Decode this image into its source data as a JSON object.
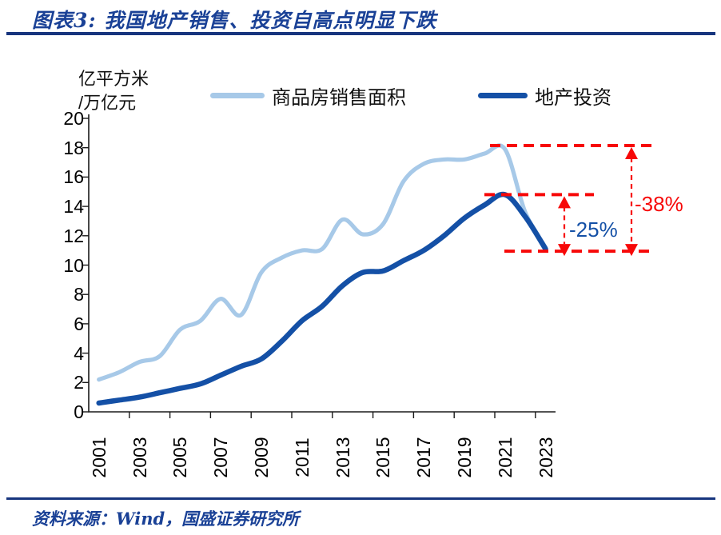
{
  "header": {
    "title": "图表3: 我国地产销售、投资自高点明显下跌"
  },
  "footer": {
    "source": "资料来源：Wind，国盛证券研究所"
  },
  "colors": {
    "rule_navy": "#17357e",
    "title_blue": "#1a4196",
    "axis": "#1a1a1a",
    "annotation_red": "#f70808",
    "sales_blue": "#a7c9e8",
    "invest_blue": "#1450a6"
  },
  "chart_data": {
    "type": "line",
    "title": "我国地产销售、投资自高点明显下跌",
    "unit_label_line1": "亿平方米",
    "unit_label_line2": "/万亿元",
    "grid": false,
    "legend_position": "top",
    "ylim": [
      0,
      20
    ],
    "yticks": [
      0,
      2,
      4,
      6,
      8,
      10,
      12,
      14,
      16,
      18,
      20
    ],
    "xticks": [
      "2001",
      "2003",
      "2005",
      "2007",
      "2009",
      "2011",
      "2013",
      "2015",
      "2017",
      "2019",
      "2021",
      "2023"
    ],
    "x": [
      2001,
      2002,
      2003,
      2004,
      2005,
      2006,
      2007,
      2008,
      2009,
      2010,
      2011,
      2012,
      2013,
      2014,
      2015,
      2016,
      2017,
      2018,
      2019,
      2020,
      2021,
      2022,
      2023
    ],
    "series": [
      {
        "id": "sales-line",
        "name": "商品房销售面积",
        "color": "#a7c9e8",
        "width": 5.2,
        "values": [
          2.2,
          2.7,
          3.4,
          3.8,
          5.6,
          6.2,
          7.7,
          6.6,
          9.5,
          10.5,
          11.0,
          11.1,
          13.1,
          12.1,
          12.8,
          15.7,
          16.9,
          17.2,
          17.2,
          17.6,
          17.9,
          13.6,
          11.2
        ]
      },
      {
        "id": "invest-line",
        "name": "地产投资",
        "color": "#1450a6",
        "width": 6.5,
        "values": [
          0.6,
          0.8,
          1.0,
          1.3,
          1.6,
          1.9,
          2.5,
          3.1,
          3.6,
          4.8,
          6.2,
          7.2,
          8.6,
          9.5,
          9.6,
          10.3,
          11.0,
          12.0,
          13.2,
          14.1,
          14.8,
          13.3,
          11.1
        ]
      }
    ],
    "annotations": {
      "color": "#f70808",
      "dashed_lines": [
        {
          "name": "sales-peak-level",
          "value": 18.15
        },
        {
          "name": "invest-peak-level",
          "value": 14.8
        },
        {
          "name": "trough-level",
          "value": 10.95
        }
      ],
      "arrows": [
        {
          "name": "invest-decline",
          "label": "-25%",
          "from": 14.8,
          "to": 10.95,
          "label_color": "#1450a6"
        },
        {
          "name": "sales-decline",
          "label": "-38%",
          "from": 18.15,
          "to": 10.95,
          "label_color": "#f70808"
        }
      ]
    }
  }
}
